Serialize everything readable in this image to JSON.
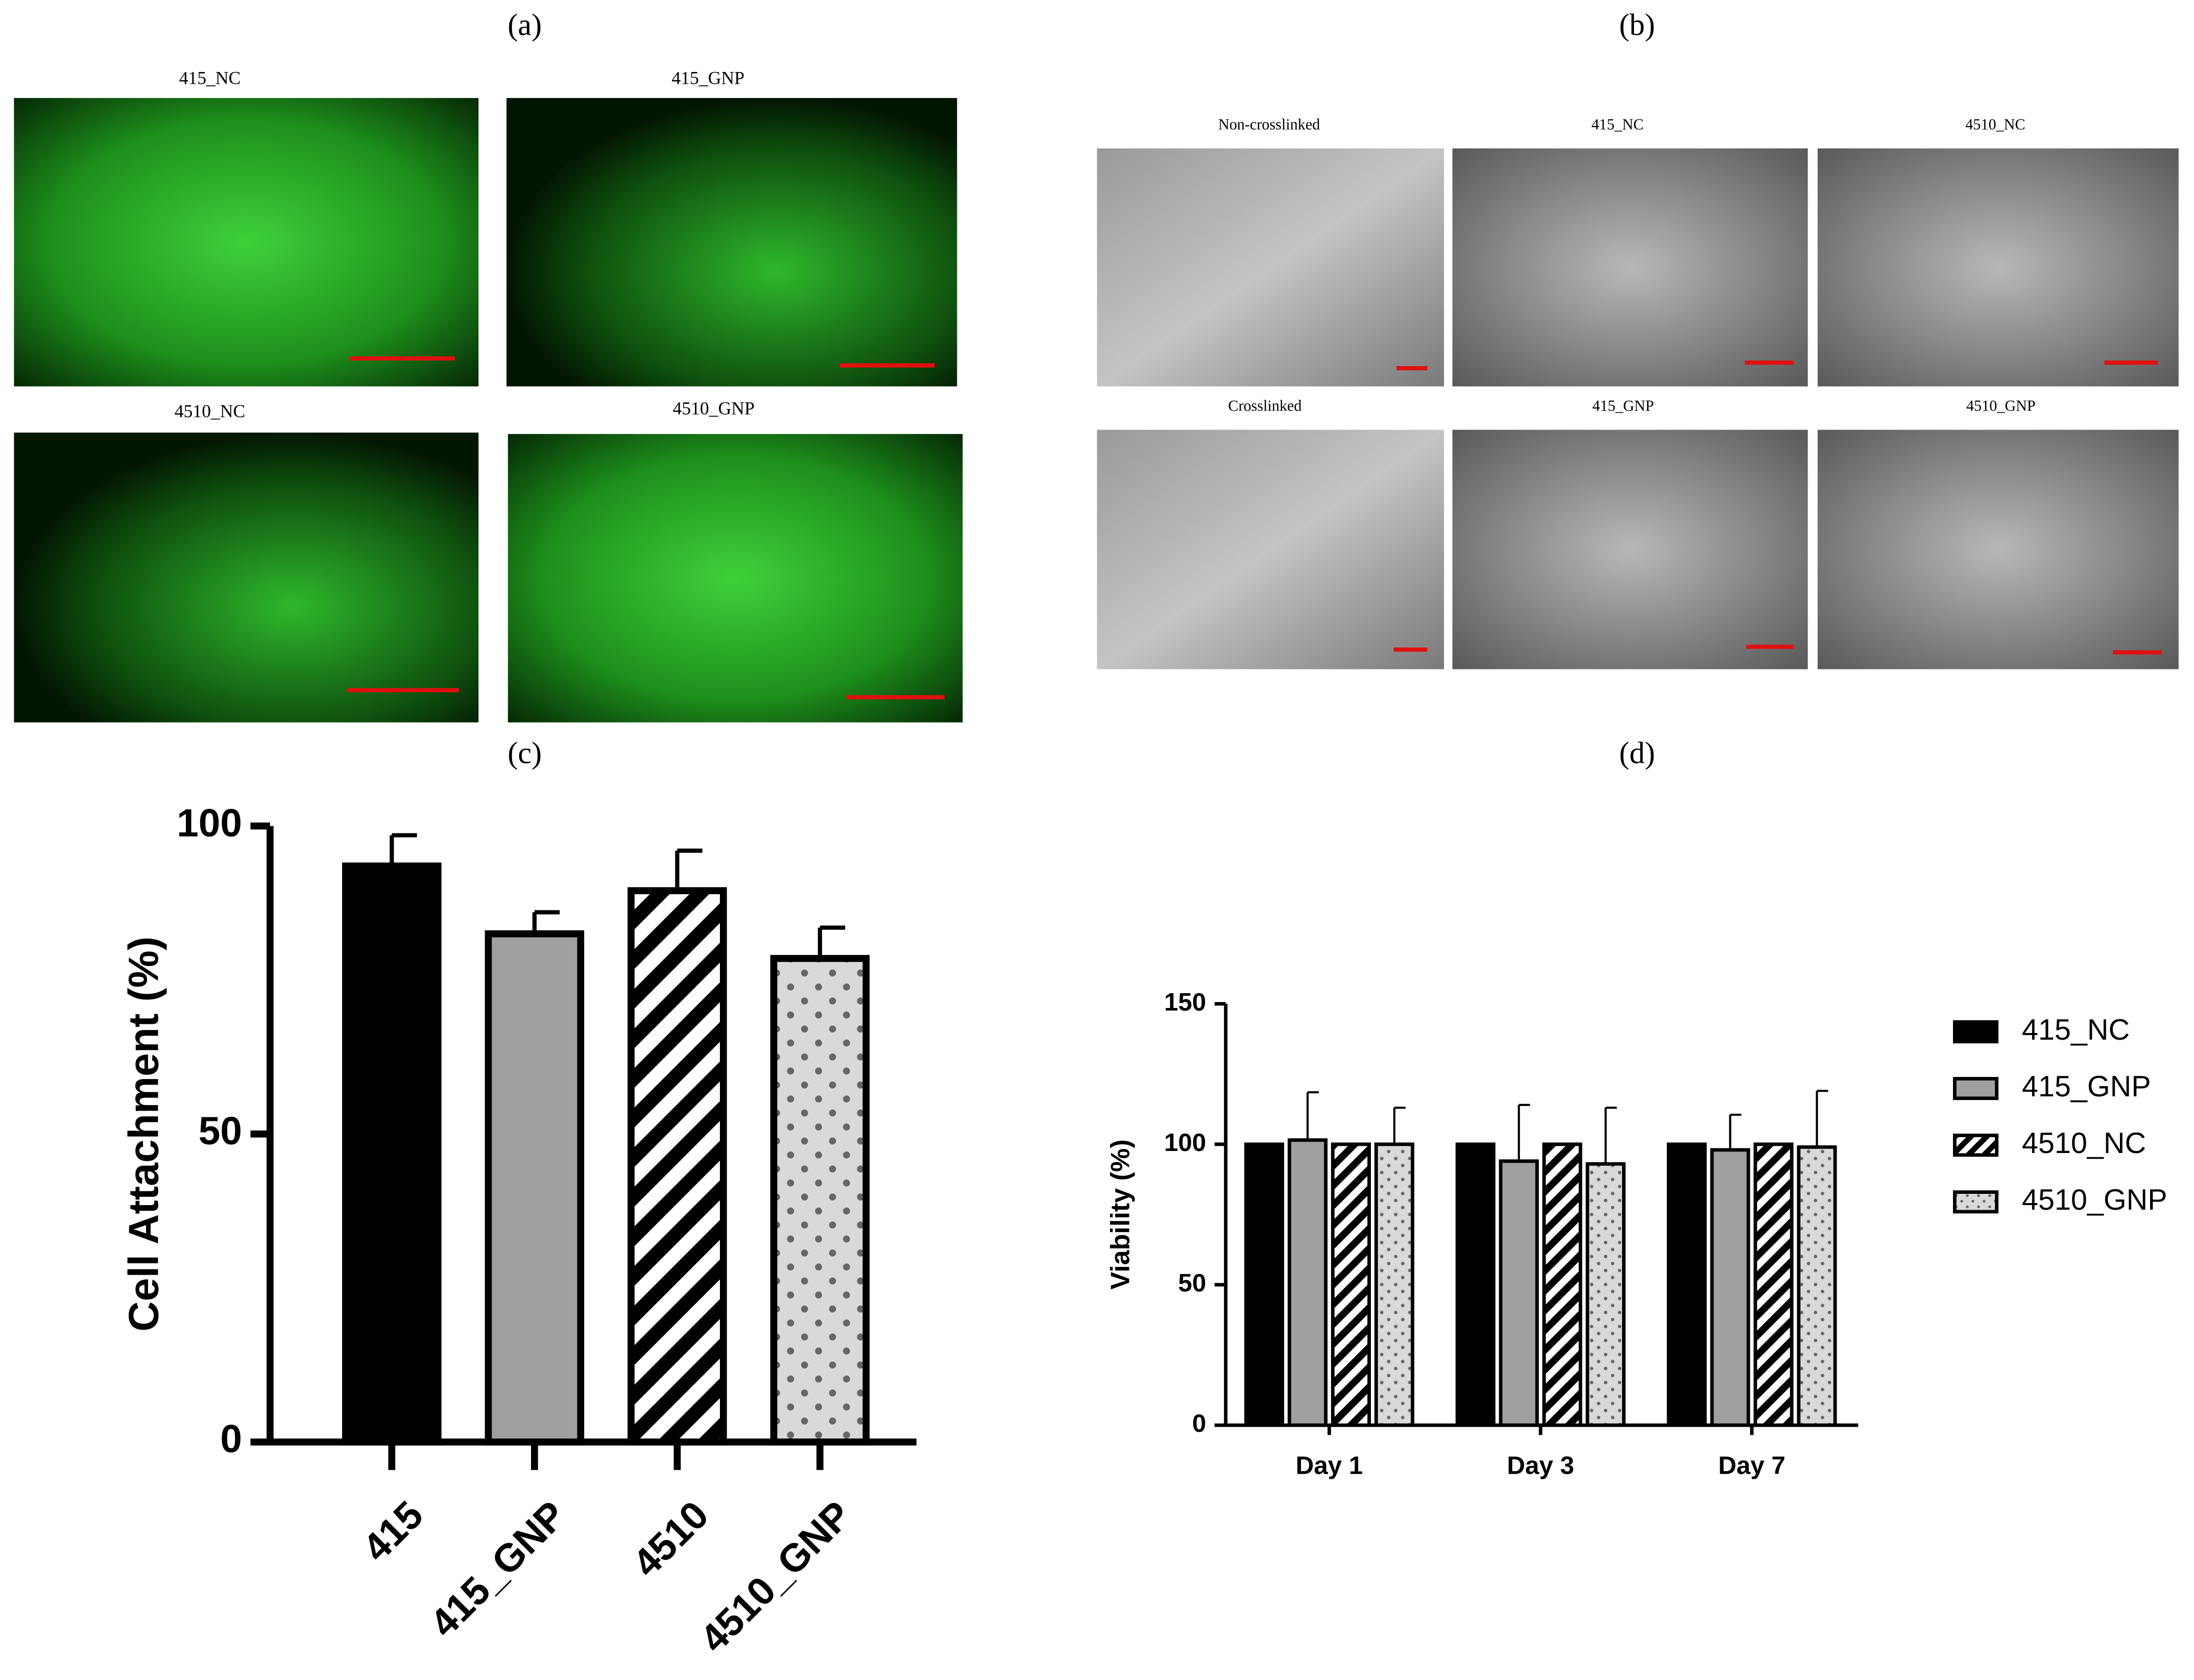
{
  "panel_labels": [
    "(a)",
    "(b)",
    "(c)",
    "(d)"
  ],
  "fluorescence_images": [
    "415_NC",
    "415_GNP",
    "4510_NC",
    "4510_GNP"
  ],
  "sem_images": [
    "Non-crosslinked",
    "415_NC",
    "4510_NC",
    "Crosslinked",
    "415_GNP",
    "4510_GNP"
  ],
  "chart_data": [
    {
      "type": "bar",
      "ylabel": "Cell Attachment (%)",
      "categories": [
        "415",
        "415_GNP",
        "4510",
        "4510_GNP"
      ],
      "values": [
        93.5,
        82.5,
        89.5,
        78.5
      ],
      "errors": [
        5,
        3.5,
        6.5,
        5
      ],
      "colors": [
        "#000000",
        "#a0a0a0",
        "#ffffff",
        "#d9d9d9"
      ],
      "patterns": [
        "solid",
        "solid",
        "stripes",
        "dots"
      ],
      "ylim": [
        0,
        100
      ],
      "yticks": [
        0,
        50,
        100
      ]
    },
    {
      "type": "grouped_bar",
      "ylabel": "Viability (%)",
      "categories": [
        "Day 1",
        "Day 3",
        "Day 7"
      ],
      "series": [
        {
          "name": "415_NC",
          "color": "#000000",
          "pattern": "solid",
          "values": [
            100,
            100,
            100
          ],
          "errors": [
            0,
            0,
            0
          ]
        },
        {
          "name": "415_GNP",
          "color": "#a0a0a0",
          "pattern": "solid",
          "values": [
            101.5,
            94,
            98
          ],
          "errors": [
            17,
            20,
            12.5
          ]
        },
        {
          "name": "4510_NC",
          "color": "#ffffff",
          "pattern": "stripes",
          "values": [
            100,
            100,
            100
          ],
          "errors": [
            0,
            0,
            0
          ]
        },
        {
          "name": "4510_GNP",
          "color": "#d9d9d9",
          "pattern": "dots",
          "values": [
            100,
            93,
            99
          ],
          "errors": [
            13,
            20,
            20
          ]
        }
      ],
      "ylim": [
        0,
        150
      ],
      "yticks": [
        0,
        50,
        100,
        150
      ],
      "legend": "right"
    }
  ]
}
